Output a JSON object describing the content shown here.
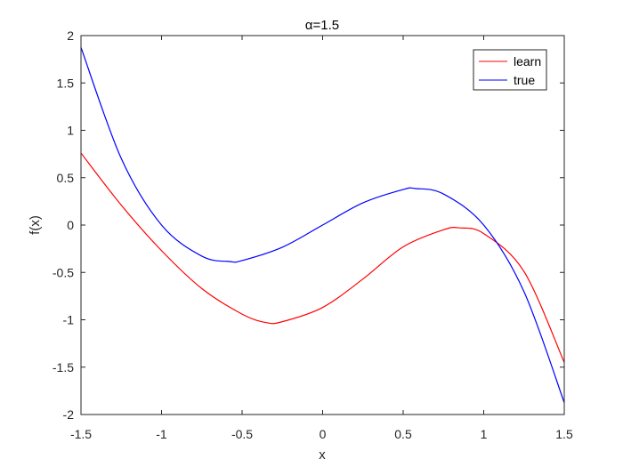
{
  "chart_data": {
    "type": "line",
    "title": "α=1.5",
    "xlabel": "x",
    "ylabel": "f(x)",
    "xlim": [
      -1.5,
      1.5
    ],
    "ylim": [
      -2,
      2
    ],
    "xticks": [
      -1.5,
      -1,
      -0.5,
      0,
      0.5,
      1,
      1.5
    ],
    "xtick_labels": [
      "-1.5",
      "-1",
      "-0.5",
      "0",
      "0.5",
      "1",
      "1.5"
    ],
    "yticks": [
      -2,
      -1.5,
      -1,
      -0.5,
      0,
      0.5,
      1,
      1.5,
      2
    ],
    "ytick_labels": [
      "-2",
      "-1.5",
      "-1",
      "-0.5",
      "0",
      "0.5",
      "1",
      "1.5",
      "2"
    ],
    "grid": false,
    "legend_position": "top-right",
    "series": [
      {
        "name": "learn",
        "color": "#ff0000",
        "x": [
          -1.5,
          -1.25,
          -1.0,
          -0.75,
          -0.5,
          -0.35,
          -0.25,
          0.0,
          0.25,
          0.5,
          0.75,
          0.85,
          1.0,
          1.25,
          1.5
        ],
        "y": [
          0.76,
          0.21,
          -0.27,
          -0.67,
          -0.94,
          -1.03,
          -1.02,
          -0.87,
          -0.57,
          -0.23,
          -0.05,
          -0.03,
          -0.09,
          -0.49,
          -1.45
        ]
      },
      {
        "name": "true",
        "color": "#0000ff",
        "x": [
          -1.5,
          -1.25,
          -1.0,
          -0.75,
          -0.577,
          -0.5,
          -0.25,
          0.0,
          0.25,
          0.5,
          0.577,
          0.75,
          1.0,
          1.25,
          1.5
        ],
        "y": [
          1.875,
          0.703,
          0.0,
          -0.328,
          -0.385,
          -0.375,
          -0.234,
          0.0,
          0.234,
          0.375,
          0.385,
          0.328,
          0.0,
          -0.703,
          -1.875
        ]
      }
    ]
  }
}
